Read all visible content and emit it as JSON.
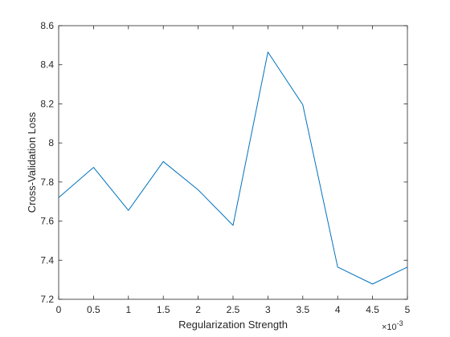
{
  "chart_data": {
    "type": "line",
    "title": "",
    "xlabel": "Regularization Strength",
    "ylabel": "Cross-Validation Loss",
    "x_exponent_base": "×10",
    "x_exponent_power": "-3",
    "xlim": [
      0,
      5
    ],
    "ylim": [
      7.2,
      8.6
    ],
    "x_ticks": [
      0,
      0.5,
      1,
      1.5,
      2,
      2.5,
      3,
      3.5,
      4,
      4.5,
      5
    ],
    "x_tick_labels": [
      "0",
      "0.5",
      "1",
      "1.5",
      "2",
      "2.5",
      "3",
      "3.5",
      "4",
      "4.5",
      "5"
    ],
    "y_ticks": [
      7.2,
      7.4,
      7.6,
      7.8,
      8.0,
      8.2,
      8.4,
      8.6
    ],
    "y_tick_labels": [
      "7.2",
      "7.4",
      "7.6",
      "7.8",
      "8",
      "8.2",
      "8.4",
      "8.6"
    ],
    "grid": false,
    "series": [
      {
        "color": "#0072bd",
        "x": [
          0,
          0.5,
          1,
          1.5,
          2,
          2.5,
          3,
          3.5,
          4,
          4.5,
          5
        ],
        "y": [
          7.72,
          7.875,
          7.655,
          7.905,
          7.76,
          7.578,
          8.465,
          8.195,
          7.365,
          7.278,
          7.365
        ]
      }
    ]
  }
}
